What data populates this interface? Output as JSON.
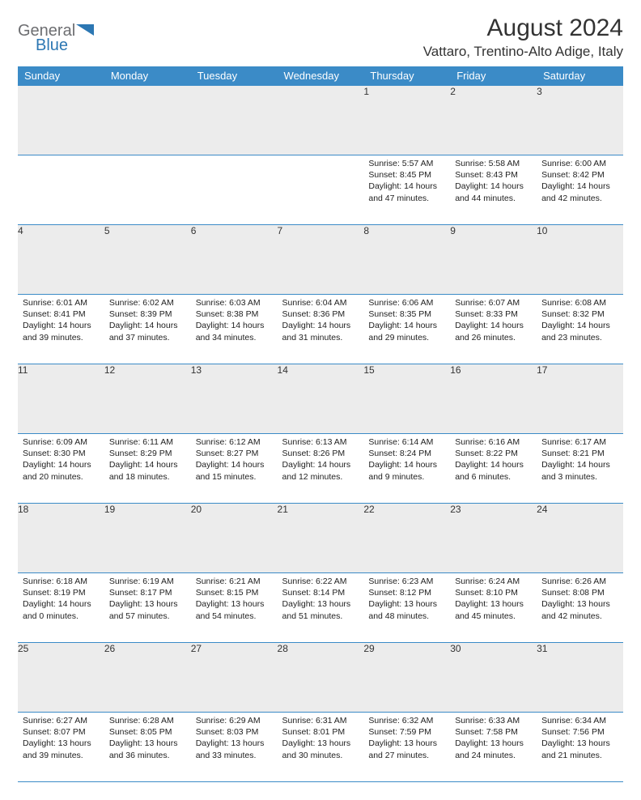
{
  "brand": {
    "name_part1": "General",
    "name_part2": "Blue",
    "color1": "#6d6e71",
    "color2": "#2c77b3"
  },
  "title": "August 2024",
  "location": "Vattaro, Trentino-Alto Adige, Italy",
  "header_bg": "#3b8bc7",
  "daynum_bg": "#ececec",
  "border_color": "#3b8bc7",
  "weekdays": [
    "Sunday",
    "Monday",
    "Tuesday",
    "Wednesday",
    "Thursday",
    "Friday",
    "Saturday"
  ],
  "weeks": [
    [
      null,
      null,
      null,
      null,
      {
        "n": "1",
        "sunrise": "5:57 AM",
        "sunset": "8:45 PM",
        "dlh": 14,
        "dlm": 47
      },
      {
        "n": "2",
        "sunrise": "5:58 AM",
        "sunset": "8:43 PM",
        "dlh": 14,
        "dlm": 44
      },
      {
        "n": "3",
        "sunrise": "6:00 AM",
        "sunset": "8:42 PM",
        "dlh": 14,
        "dlm": 42
      }
    ],
    [
      {
        "n": "4",
        "sunrise": "6:01 AM",
        "sunset": "8:41 PM",
        "dlh": 14,
        "dlm": 39
      },
      {
        "n": "5",
        "sunrise": "6:02 AM",
        "sunset": "8:39 PM",
        "dlh": 14,
        "dlm": 37
      },
      {
        "n": "6",
        "sunrise": "6:03 AM",
        "sunset": "8:38 PM",
        "dlh": 14,
        "dlm": 34
      },
      {
        "n": "7",
        "sunrise": "6:04 AM",
        "sunset": "8:36 PM",
        "dlh": 14,
        "dlm": 31
      },
      {
        "n": "8",
        "sunrise": "6:06 AM",
        "sunset": "8:35 PM",
        "dlh": 14,
        "dlm": 29
      },
      {
        "n": "9",
        "sunrise": "6:07 AM",
        "sunset": "8:33 PM",
        "dlh": 14,
        "dlm": 26
      },
      {
        "n": "10",
        "sunrise": "6:08 AM",
        "sunset": "8:32 PM",
        "dlh": 14,
        "dlm": 23
      }
    ],
    [
      {
        "n": "11",
        "sunrise": "6:09 AM",
        "sunset": "8:30 PM",
        "dlh": 14,
        "dlm": 20
      },
      {
        "n": "12",
        "sunrise": "6:11 AM",
        "sunset": "8:29 PM",
        "dlh": 14,
        "dlm": 18
      },
      {
        "n": "13",
        "sunrise": "6:12 AM",
        "sunset": "8:27 PM",
        "dlh": 14,
        "dlm": 15
      },
      {
        "n": "14",
        "sunrise": "6:13 AM",
        "sunset": "8:26 PM",
        "dlh": 14,
        "dlm": 12
      },
      {
        "n": "15",
        "sunrise": "6:14 AM",
        "sunset": "8:24 PM",
        "dlh": 14,
        "dlm": 9
      },
      {
        "n": "16",
        "sunrise": "6:16 AM",
        "sunset": "8:22 PM",
        "dlh": 14,
        "dlm": 6
      },
      {
        "n": "17",
        "sunrise": "6:17 AM",
        "sunset": "8:21 PM",
        "dlh": 14,
        "dlm": 3
      }
    ],
    [
      {
        "n": "18",
        "sunrise": "6:18 AM",
        "sunset": "8:19 PM",
        "dlh": 14,
        "dlm": 0
      },
      {
        "n": "19",
        "sunrise": "6:19 AM",
        "sunset": "8:17 PM",
        "dlh": 13,
        "dlm": 57
      },
      {
        "n": "20",
        "sunrise": "6:21 AM",
        "sunset": "8:15 PM",
        "dlh": 13,
        "dlm": 54
      },
      {
        "n": "21",
        "sunrise": "6:22 AM",
        "sunset": "8:14 PM",
        "dlh": 13,
        "dlm": 51
      },
      {
        "n": "22",
        "sunrise": "6:23 AM",
        "sunset": "8:12 PM",
        "dlh": 13,
        "dlm": 48
      },
      {
        "n": "23",
        "sunrise": "6:24 AM",
        "sunset": "8:10 PM",
        "dlh": 13,
        "dlm": 45
      },
      {
        "n": "24",
        "sunrise": "6:26 AM",
        "sunset": "8:08 PM",
        "dlh": 13,
        "dlm": 42
      }
    ],
    [
      {
        "n": "25",
        "sunrise": "6:27 AM",
        "sunset": "8:07 PM",
        "dlh": 13,
        "dlm": 39
      },
      {
        "n": "26",
        "sunrise": "6:28 AM",
        "sunset": "8:05 PM",
        "dlh": 13,
        "dlm": 36
      },
      {
        "n": "27",
        "sunrise": "6:29 AM",
        "sunset": "8:03 PM",
        "dlh": 13,
        "dlm": 33
      },
      {
        "n": "28",
        "sunrise": "6:31 AM",
        "sunset": "8:01 PM",
        "dlh": 13,
        "dlm": 30
      },
      {
        "n": "29",
        "sunrise": "6:32 AM",
        "sunset": "7:59 PM",
        "dlh": 13,
        "dlm": 27
      },
      {
        "n": "30",
        "sunrise": "6:33 AM",
        "sunset": "7:58 PM",
        "dlh": 13,
        "dlm": 24
      },
      {
        "n": "31",
        "sunrise": "6:34 AM",
        "sunset": "7:56 PM",
        "dlh": 13,
        "dlm": 21
      }
    ]
  ],
  "labels": {
    "sunrise": "Sunrise:",
    "sunset": "Sunset:",
    "daylight": "Daylight:",
    "hours": "hours",
    "and": "and",
    "minutes": "minutes."
  }
}
